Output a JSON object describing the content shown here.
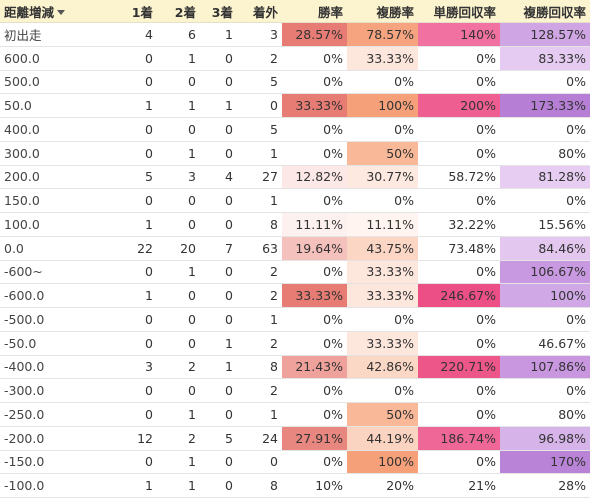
{
  "table": {
    "headers": [
      "距離増減",
      "1着",
      "2着",
      "3着",
      "着外",
      "勝率",
      "複勝率",
      "単勝回収率",
      "複勝回収率"
    ],
    "rows": [
      [
        "初出走",
        4,
        6,
        1,
        3,
        "28.57%",
        "78.57%",
        "140%",
        "128.57%"
      ],
      [
        "600.0",
        0,
        1,
        0,
        2,
        "0%",
        "33.33%",
        "0%",
        "83.33%"
      ],
      [
        "500.0",
        0,
        0,
        0,
        5,
        "0%",
        "0%",
        "0%",
        "0%"
      ],
      [
        "50.0",
        1,
        1,
        1,
        0,
        "33.33%",
        "100%",
        "200%",
        "173.33%"
      ],
      [
        "400.0",
        0,
        0,
        0,
        5,
        "0%",
        "0%",
        "0%",
        "0%"
      ],
      [
        "300.0",
        0,
        1,
        0,
        1,
        "0%",
        "50%",
        "0%",
        "80%"
      ],
      [
        "200.0",
        5,
        3,
        4,
        27,
        "12.82%",
        "30.77%",
        "58.72%",
        "81.28%"
      ],
      [
        "150.0",
        0,
        0,
        0,
        1,
        "0%",
        "0%",
        "0%",
        "0%"
      ],
      [
        "100.0",
        1,
        0,
        0,
        8,
        "11.11%",
        "11.11%",
        "32.22%",
        "15.56%"
      ],
      [
        "0.0",
        22,
        20,
        7,
        63,
        "19.64%",
        "43.75%",
        "73.48%",
        "84.46%"
      ],
      [
        "-600~",
        0,
        1,
        0,
        2,
        "0%",
        "33.33%",
        "0%",
        "106.67%"
      ],
      [
        "-600.0",
        1,
        0,
        0,
        2,
        "33.33%",
        "33.33%",
        "246.67%",
        "100%"
      ],
      [
        "-500.0",
        0,
        0,
        0,
        1,
        "0%",
        "0%",
        "0%",
        "0%"
      ],
      [
        "-50.0",
        0,
        0,
        1,
        2,
        "0%",
        "33.33%",
        "0%",
        "46.67%"
      ],
      [
        "-400.0",
        3,
        2,
        1,
        8,
        "21.43%",
        "42.86%",
        "220.71%",
        "107.86%"
      ],
      [
        "-300.0",
        0,
        0,
        0,
        2,
        "0%",
        "0%",
        "0%",
        "0%"
      ],
      [
        "-250.0",
        0,
        1,
        0,
        1,
        "0%",
        "50%",
        "0%",
        "80%"
      ],
      [
        "-200.0",
        12,
        2,
        5,
        24,
        "27.91%",
        "44.19%",
        "186.74%",
        "96.98%"
      ],
      [
        "-150.0",
        0,
        1,
        0,
        0,
        "0%",
        "100%",
        "0%",
        "170%"
      ],
      [
        "-100.0",
        1,
        1,
        0,
        8,
        "10%",
        "20%",
        "21%",
        "28%"
      ]
    ]
  }
}
